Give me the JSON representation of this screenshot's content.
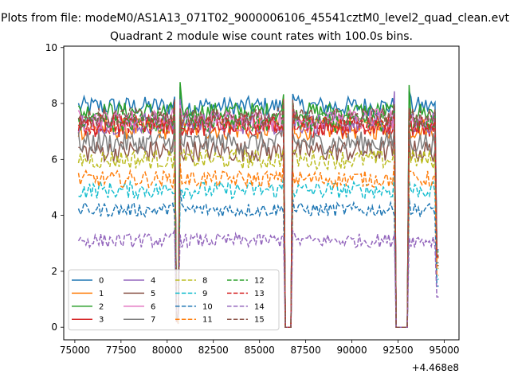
{
  "chart_data": {
    "type": "line",
    "suptitle": "Plots from file: modeM0/AS1A13_071T02_9000006106_45541cztM0_level2_quad_clean.evt",
    "title": "Quadrant 2 module wise count rates with 100.0s bins.",
    "xlabel": "",
    "ylabel": "",
    "x_offset_label": "+4.468e8",
    "xlim": [
      74400,
      95800
    ],
    "ylim": [
      -0.45,
      10.05
    ],
    "x_ticks": [
      75000,
      77500,
      80000,
      82500,
      85000,
      87500,
      90000,
      92500,
      95000
    ],
    "x_tick_labels": [
      "75000",
      "77500",
      "80000",
      "82500",
      "85000",
      "87500",
      "90000",
      "92500",
      "95000"
    ],
    "y_ticks": [
      0,
      2,
      4,
      6,
      8,
      10
    ],
    "y_tick_labels": [
      "0",
      "2",
      "4",
      "6",
      "8",
      "10"
    ],
    "x_range": [
      75200,
      94700
    ],
    "bin_width": 100,
    "gaps": [
      {
        "type": "dip",
        "start": 80500,
        "end": 80600
      },
      {
        "type": "zero",
        "start": 86400,
        "end": 86700
      },
      {
        "type": "zero",
        "start": 92400,
        "end": 93000
      }
    ],
    "series": [
      {
        "name": "0",
        "level": 7.9,
        "noise": 0.35,
        "color": "#1f77b4",
        "dashed": false
      },
      {
        "name": "1",
        "level": 7.1,
        "noise": 0.4,
        "color": "#ff7f0e",
        "dashed": false
      },
      {
        "name": "2",
        "level": 7.7,
        "noise": 0.35,
        "color": "#2ca02c",
        "dashed": false
      },
      {
        "name": "3",
        "level": 7.2,
        "noise": 0.4,
        "color": "#d62728",
        "dashed": false
      },
      {
        "name": "4",
        "level": 7.3,
        "noise": 0.4,
        "color": "#9467bd",
        "dashed": false
      },
      {
        "name": "5",
        "level": 6.3,
        "noise": 0.4,
        "color": "#8c564b",
        "dashed": false
      },
      {
        "name": "6",
        "level": 7.4,
        "noise": 0.4,
        "color": "#e377c2",
        "dashed": false
      },
      {
        "name": "7",
        "level": 6.6,
        "noise": 0.4,
        "color": "#7f7f7f",
        "dashed": false
      },
      {
        "name": "8",
        "level": 6.0,
        "noise": 0.35,
        "color": "#bcbd22",
        "dashed": true
      },
      {
        "name": "9",
        "level": 4.9,
        "noise": 0.3,
        "color": "#17becf",
        "dashed": true
      },
      {
        "name": "10",
        "level": 4.2,
        "noise": 0.25,
        "color": "#1f77b4",
        "dashed": true
      },
      {
        "name": "11",
        "level": 5.3,
        "noise": 0.3,
        "color": "#ff7f0e",
        "dashed": true
      },
      {
        "name": "12",
        "level": 7.3,
        "noise": 0.35,
        "color": "#2ca02c",
        "dashed": true
      },
      {
        "name": "13",
        "level": 7.2,
        "noise": 0.35,
        "color": "#d62728",
        "dashed": true
      },
      {
        "name": "14",
        "level": 3.1,
        "noise": 0.25,
        "color": "#9467bd",
        "dashed": true
      },
      {
        "name": "15",
        "level": 7.5,
        "noise": 0.35,
        "color": "#8c564b",
        "dashed": true
      }
    ],
    "legend": {
      "location": "lower-left",
      "columns": 4
    }
  }
}
